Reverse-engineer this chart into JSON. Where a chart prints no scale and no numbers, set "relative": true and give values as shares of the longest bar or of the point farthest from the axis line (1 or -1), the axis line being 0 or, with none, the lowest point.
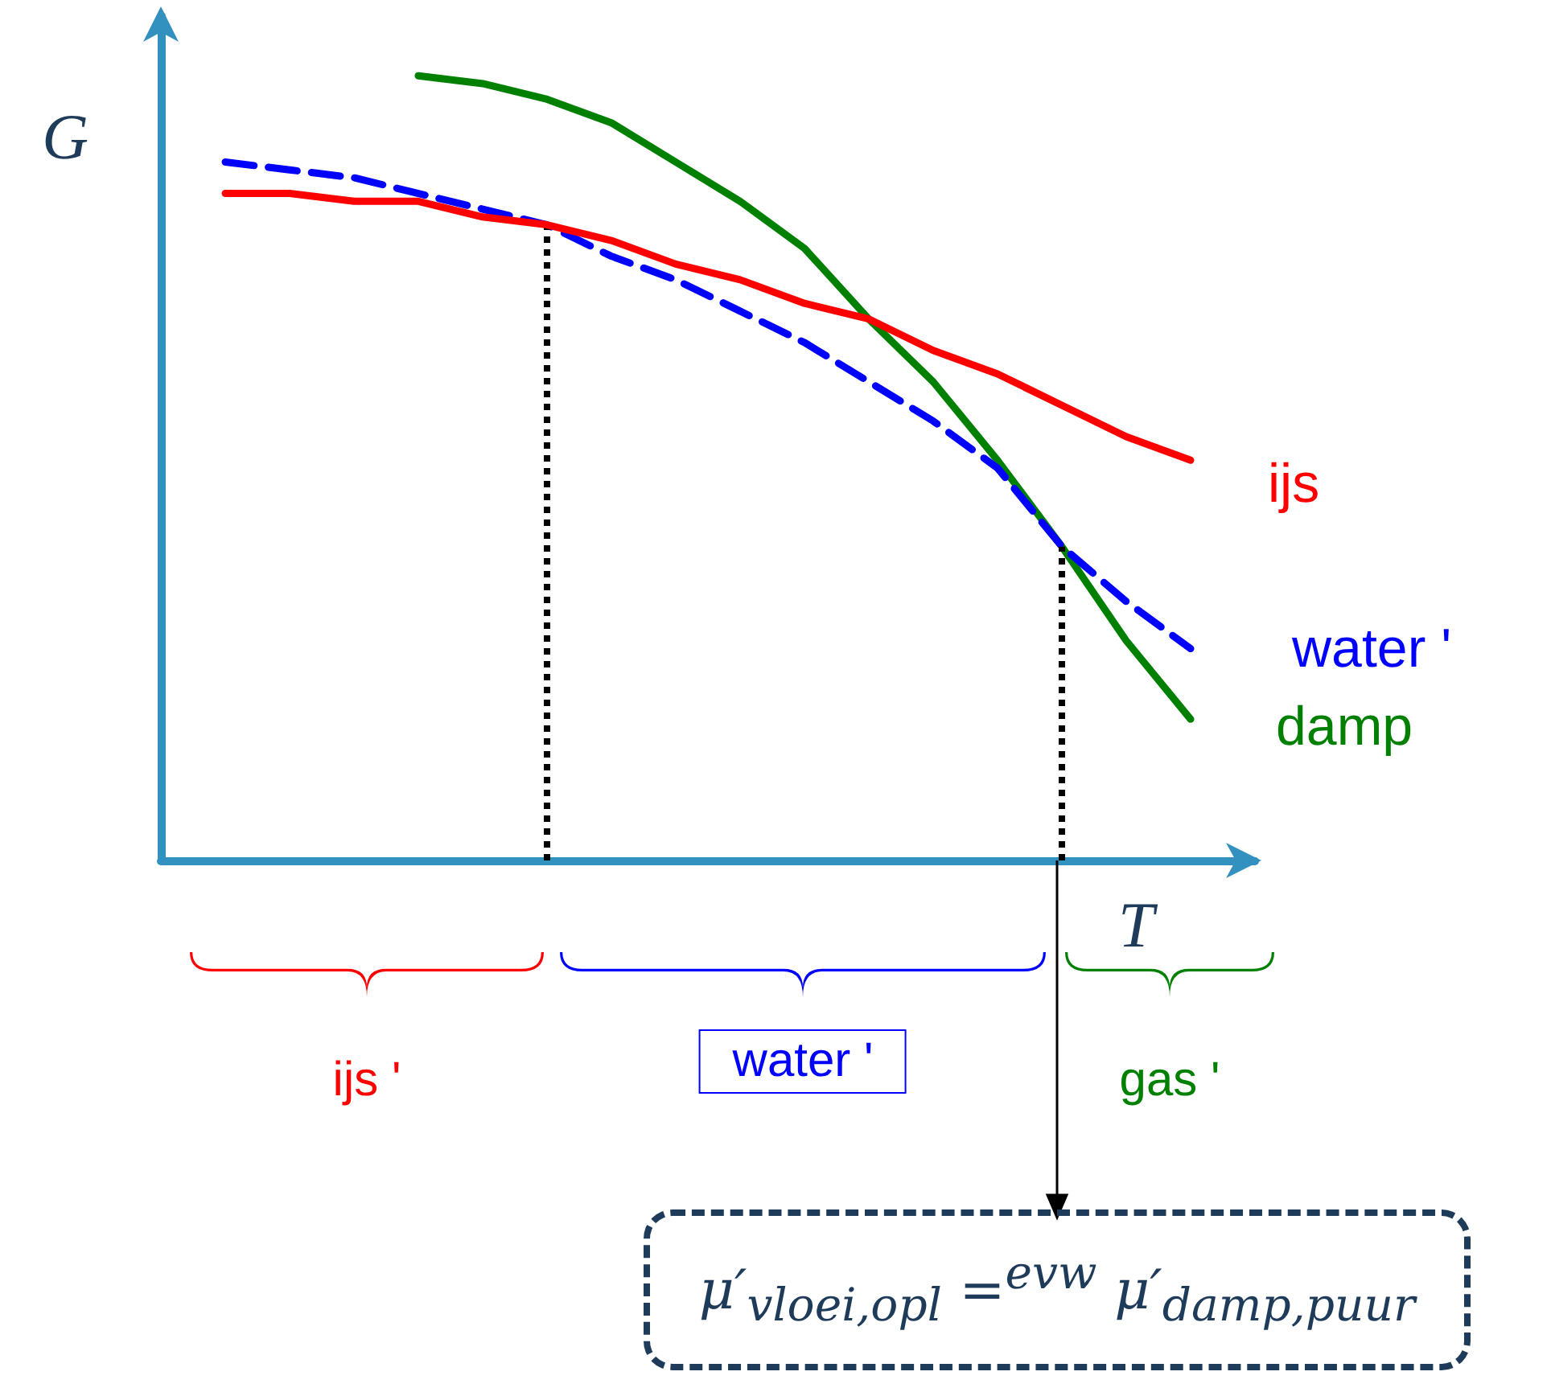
{
  "chart_data": {
    "type": "line",
    "relative": true,
    "xlabel": "T",
    "ylabel": "G",
    "categories": [
      null,
      null,
      null,
      null,
      null,
      null,
      null,
      null,
      null,
      null,
      null,
      null,
      null,
      null,
      null,
      null,
      null,
      null
    ],
    "series": [
      {
        "name": "ijs",
        "color": "#ff0000",
        "line_style": "solid",
        "values": [
          null,
          0.85,
          0.85,
          0.84,
          0.84,
          0.82,
          0.81,
          0.79,
          0.76,
          0.74,
          0.71,
          0.69,
          0.65,
          0.62,
          0.58,
          0.54,
          0.51,
          null
        ]
      },
      {
        "name": "water '",
        "color": "#0000ff",
        "line_style": "dashed",
        "values": [
          null,
          0.89,
          0.88,
          0.87,
          0.85,
          0.83,
          0.81,
          0.77,
          0.74,
          0.7,
          0.66,
          0.61,
          0.56,
          0.5,
          0.4,
          0.33,
          0.27,
          null
        ]
      },
      {
        "name": "damp",
        "color": "#008000",
        "line_style": "solid",
        "values": [
          null,
          null,
          null,
          null,
          1.0,
          0.99,
          0.97,
          0.94,
          0.89,
          0.84,
          0.78,
          0.69,
          0.61,
          0.51,
          0.4,
          0.28,
          0.18,
          null
        ]
      }
    ],
    "annotations": [
      "ijs '",
      "water '",
      "gas '",
      "μ′$_{vloei,opl}$ =$^{evw}$ μ′$_{damp,puur}$"
    ],
    "grid": false,
    "legend": false,
    "marker": "none"
  }
}
